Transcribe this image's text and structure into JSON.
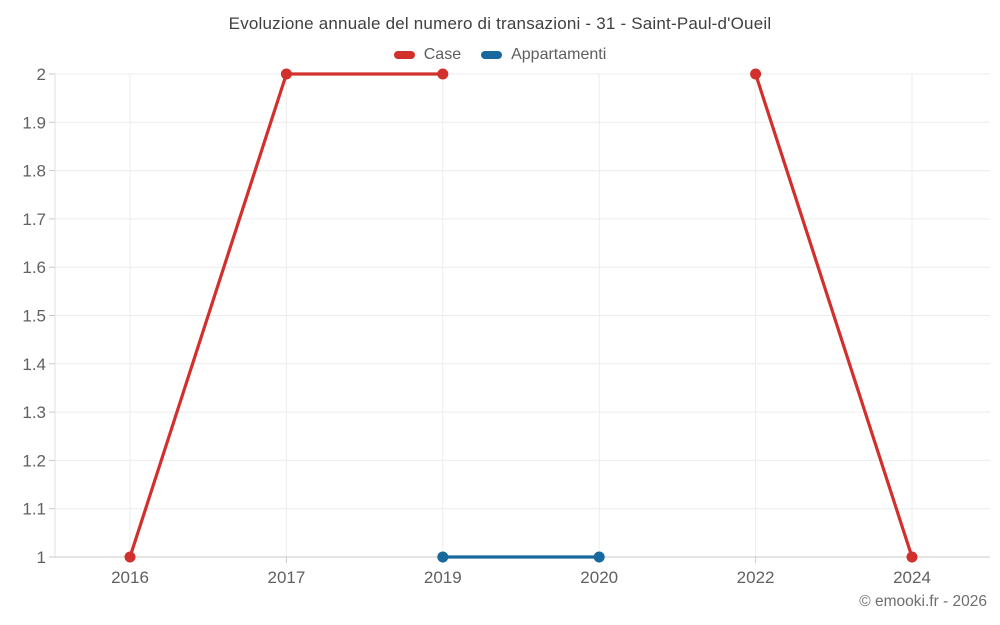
{
  "chart_data": {
    "type": "line",
    "title": "Evoluzione annuale del numero di transazioni - 31 - Saint-Paul-d'Oueil",
    "categories": [
      "2016",
      "2017",
      "2019",
      "2020",
      "2022",
      "2024"
    ],
    "series": [
      {
        "name": "Case",
        "color": "#d2302c",
        "values": [
          1,
          2,
          2,
          null,
          2,
          1
        ]
      },
      {
        "name": "Appartamenti",
        "color": "#17699e",
        "values": [
          null,
          null,
          1,
          1,
          null,
          null
        ]
      }
    ],
    "ylim": [
      1,
      2
    ],
    "yticks": [
      2,
      1.9,
      1.8,
      1.7,
      1.6,
      1.5,
      1.4,
      1.3,
      1.2,
      1.1,
      1
    ],
    "grid": true,
    "legend_position": "top",
    "marker": "circle",
    "copyright": "© emooki.fr - 2026"
  }
}
